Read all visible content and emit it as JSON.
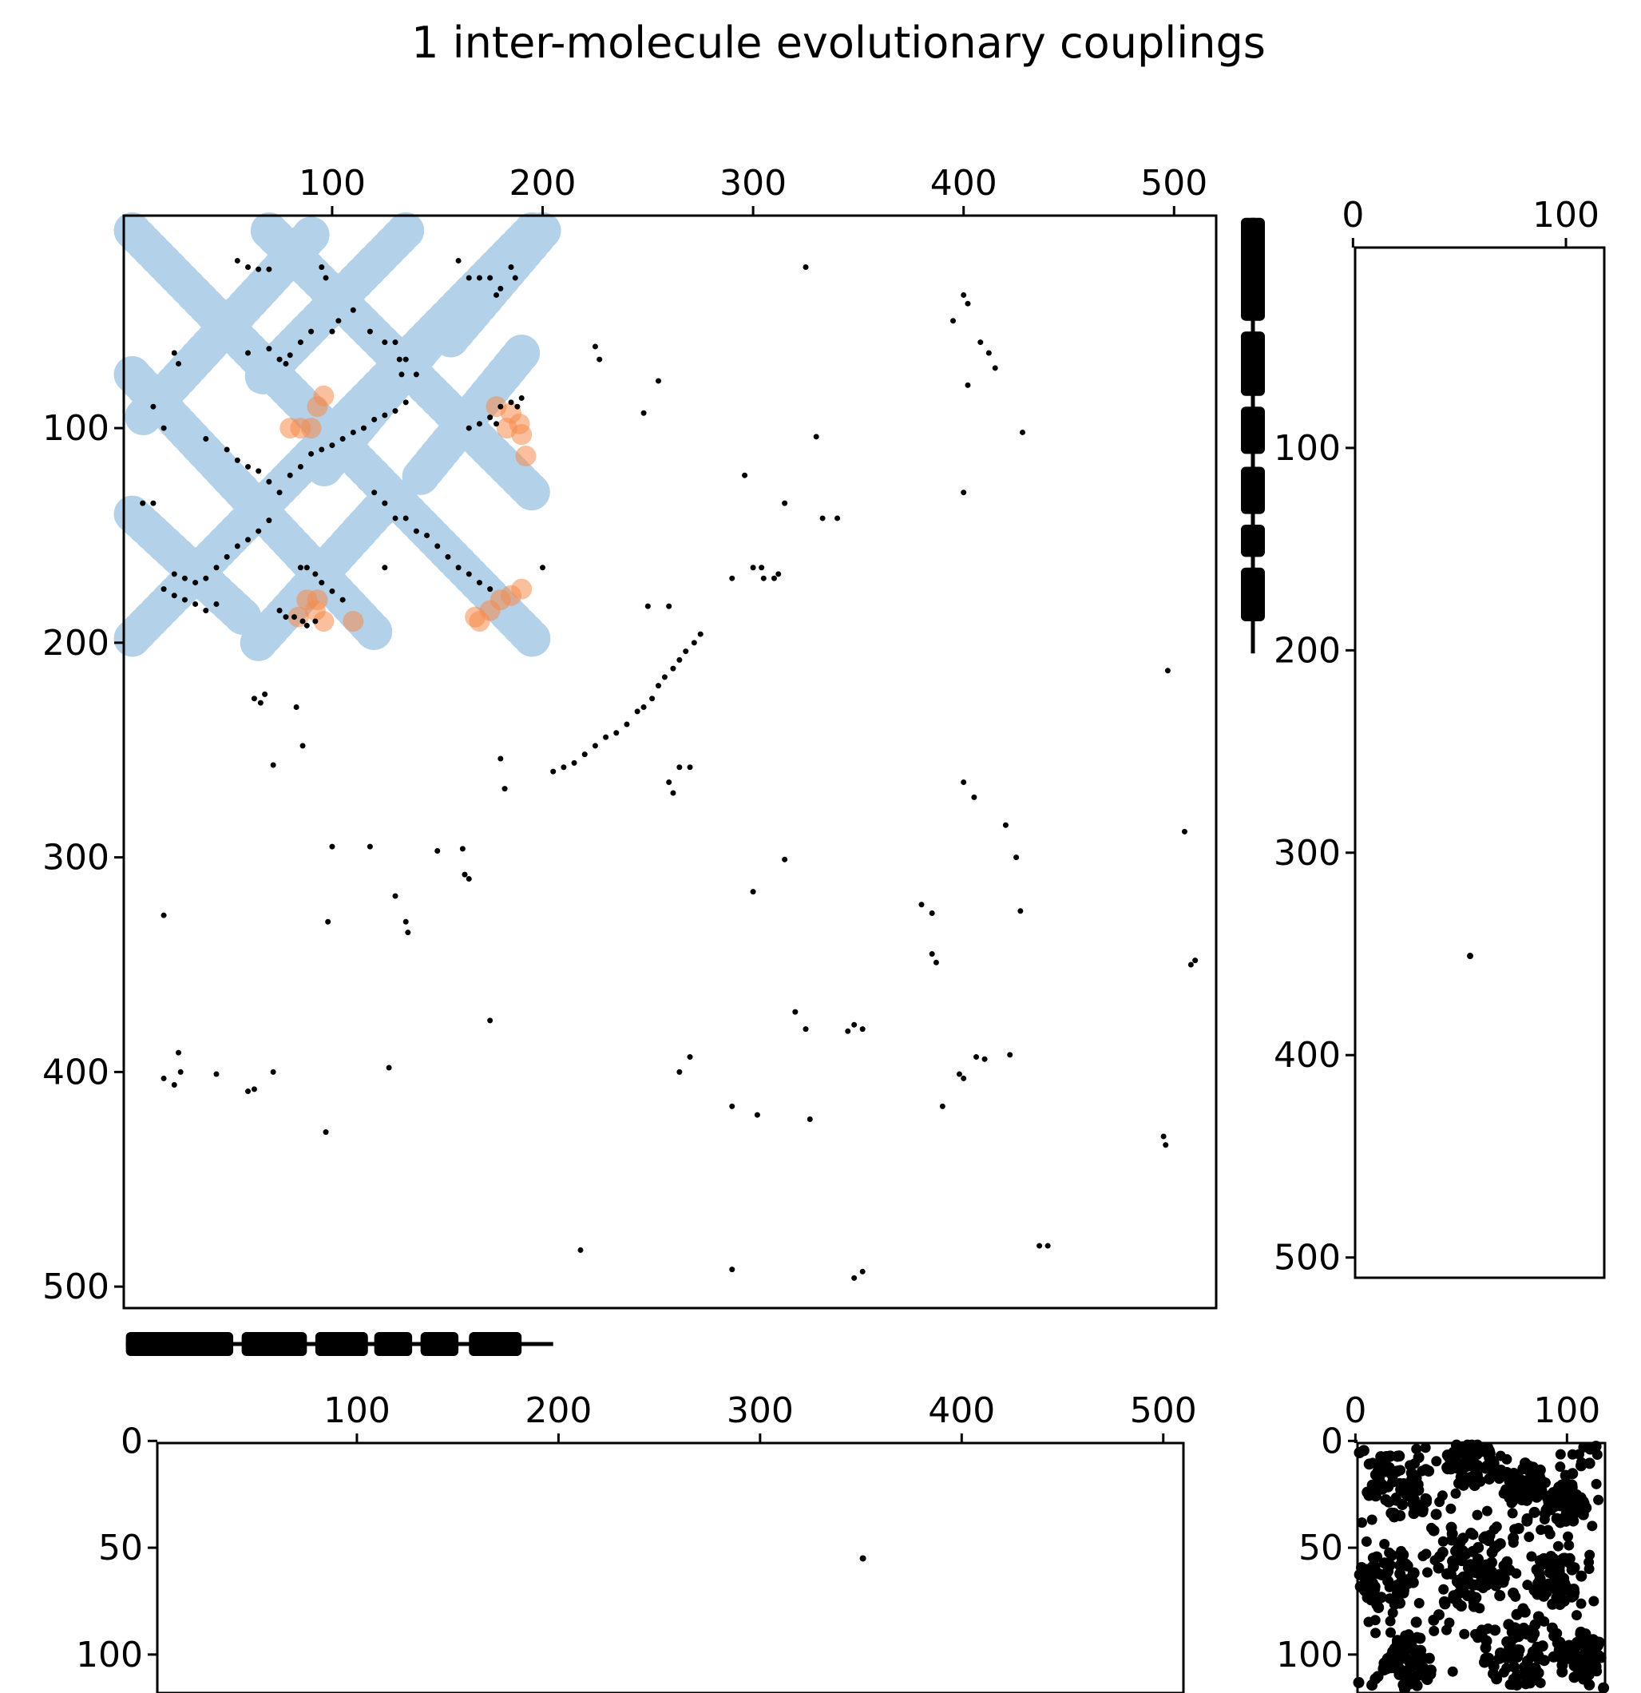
{
  "title": "1 inter-molecule evolutionary couplings",
  "colors": {
    "frame": "#000000",
    "ec_points": "#000000",
    "monomer_contacts": "#b3d1e8",
    "complex_contacts": "#f58a4a",
    "background": "#ffffff"
  },
  "chart_data": [
    {
      "id": "main",
      "type": "scatter",
      "title": "1 inter-molecule evolutionary couplings",
      "xlim": [
        1,
        520
      ],
      "ylim": [
        1,
        510
      ],
      "x_axis_position": "top",
      "y_inverted": true,
      "grid": false,
      "xticks": [
        100,
        200,
        300,
        400,
        500
      ],
      "yticks": [
        100,
        200,
        300,
        400,
        500
      ],
      "series": [],
      "monomer_contact_bands": [
        {
          "x1": 5,
          "y1": 8,
          "x2": 195,
          "y2": 198
        },
        {
          "x1": 5,
          "y1": 198,
          "x2": 195,
          "y2": 8
        },
        {
          "x1": 70,
          "y1": 8,
          "x2": 195,
          "y2": 130
        },
        {
          "x1": 5,
          "y1": 75,
          "x2": 120,
          "y2": 195
        },
        {
          "x1": 90,
          "y1": 10,
          "x2": 10,
          "y2": 95
        },
        {
          "x1": 135,
          "y1": 8,
          "x2": 65,
          "y2": 78
        },
        {
          "x1": 200,
          "y1": 8,
          "x2": 155,
          "y2": 60
        },
        {
          "x1": 190,
          "y1": 65,
          "x2": 140,
          "y2": 125
        },
        {
          "x1": 65,
          "y1": 200,
          "x2": 125,
          "y2": 135
        },
        {
          "x1": 5,
          "y1": 140,
          "x2": 60,
          "y2": 190
        },
        {
          "x1": 150,
          "y1": 55,
          "x2": 95,
          "y2": 120
        }
      ],
      "complex_contacts": [
        [
          96,
          85
        ],
        [
          93,
          90
        ],
        [
          85,
          100
        ],
        [
          90,
          100
        ],
        [
          80,
          100
        ],
        [
          185,
          93
        ],
        [
          189,
          98
        ],
        [
          183,
          100
        ],
        [
          178,
          90
        ],
        [
          190,
          103
        ],
        [
          192,
          113
        ],
        [
          88,
          180
        ],
        [
          92,
          185
        ],
        [
          96,
          190
        ],
        [
          84,
          188
        ],
        [
          93,
          180
        ],
        [
          110,
          190
        ],
        [
          175,
          185
        ],
        [
          170,
          190
        ],
        [
          185,
          178
        ],
        [
          190,
          175
        ],
        [
          180,
          180
        ],
        [
          168,
          188
        ]
      ],
      "ec_points": [
        [
          55,
          22
        ],
        [
          60,
          25
        ],
        [
          65,
          26
        ],
        [
          70,
          26
        ],
        [
          25,
          65
        ],
        [
          27,
          70
        ],
        [
          95,
          25
        ],
        [
          97,
          30
        ],
        [
          90,
          55
        ],
        [
          100,
          55
        ],
        [
          103,
          50
        ],
        [
          110,
          45
        ],
        [
          118,
          55
        ],
        [
          125,
          60
        ],
        [
          130,
          60
        ],
        [
          132,
          68
        ],
        [
          135,
          68
        ],
        [
          133,
          75
        ],
        [
          140,
          75
        ],
        [
          160,
          22
        ],
        [
          165,
          30
        ],
        [
          170,
          30
        ],
        [
          175,
          30
        ],
        [
          178,
          38
        ],
        [
          180,
          35
        ],
        [
          185,
          25
        ],
        [
          187,
          30
        ],
        [
          60,
          65
        ],
        [
          70,
          63
        ],
        [
          75,
          68
        ],
        [
          78,
          70
        ],
        [
          80,
          66
        ],
        [
          85,
          60
        ],
        [
          15,
          90
        ],
        [
          20,
          100
        ],
        [
          40,
          105
        ],
        [
          50,
          110
        ],
        [
          55,
          115
        ],
        [
          60,
          118
        ],
        [
          65,
          120
        ],
        [
          70,
          125
        ],
        [
          75,
          130
        ],
        [
          80,
          122
        ],
        [
          85,
          118
        ],
        [
          90,
          112
        ],
        [
          95,
          110
        ],
        [
          100,
          108
        ],
        [
          105,
          105
        ],
        [
          110,
          102
        ],
        [
          115,
          100
        ],
        [
          120,
          96
        ],
        [
          125,
          94
        ],
        [
          130,
          92
        ],
        [
          135,
          88
        ],
        [
          175,
          95
        ],
        [
          180,
          90
        ],
        [
          185,
          88
        ],
        [
          188,
          90
        ],
        [
          190,
          86
        ],
        [
          178,
          98
        ],
        [
          170,
          98
        ],
        [
          165,
          100
        ],
        [
          10,
          135
        ],
        [
          15,
          135
        ],
        [
          120,
          130
        ],
        [
          125,
          135
        ],
        [
          130,
          142
        ],
        [
          135,
          142
        ],
        [
          140,
          148
        ],
        [
          145,
          150
        ],
        [
          150,
          155
        ],
        [
          155,
          160
        ],
        [
          160,
          165
        ],
        [
          165,
          168
        ],
        [
          170,
          172
        ],
        [
          175,
          175
        ],
        [
          200,
          165
        ],
        [
          125,
          165
        ],
        [
          25,
          168
        ],
        [
          30,
          170
        ],
        [
          35,
          172
        ],
        [
          40,
          170
        ],
        [
          45,
          165
        ],
        [
          50,
          160
        ],
        [
          55,
          155
        ],
        [
          60,
          152
        ],
        [
          65,
          148
        ],
        [
          70,
          143
        ],
        [
          20,
          175
        ],
        [
          25,
          178
        ],
        [
          30,
          180
        ],
        [
          35,
          182
        ],
        [
          40,
          185
        ],
        [
          45,
          182
        ],
        [
          85,
          165
        ],
        [
          88,
          165
        ],
        [
          92,
          168
        ],
        [
          95,
          172
        ],
        [
          100,
          176
        ],
        [
          105,
          180
        ],
        [
          75,
          185
        ],
        [
          78,
          188
        ],
        [
          82,
          188
        ],
        [
          86,
          190
        ],
        [
          88,
          192
        ],
        [
          92,
          190
        ],
        [
          63,
          226
        ],
        [
          68,
          224
        ],
        [
          66,
          228
        ],
        [
          86,
          248
        ],
        [
          72,
          257
        ],
        [
          83,
          230
        ],
        [
          100,
          295
        ],
        [
          180,
          254
        ],
        [
          182,
          268
        ],
        [
          205,
          260
        ],
        [
          210,
          258
        ],
        [
          215,
          256
        ],
        [
          220,
          252
        ],
        [
          225,
          248
        ],
        [
          230,
          244
        ],
        [
          235,
          242
        ],
        [
          240,
          238
        ],
        [
          245,
          232
        ],
        [
          248,
          230
        ],
        [
          252,
          226
        ],
        [
          255,
          220
        ],
        [
          258,
          216
        ],
        [
          262,
          212
        ],
        [
          265,
          208
        ],
        [
          268,
          204
        ],
        [
          272,
          200
        ],
        [
          275,
          196
        ],
        [
          250,
          183
        ],
        [
          260,
          183
        ],
        [
          290,
          170
        ],
        [
          300,
          165
        ],
        [
          304,
          165
        ],
        [
          305,
          170
        ],
        [
          310,
          170
        ],
        [
          312,
          168
        ],
        [
          260,
          265
        ],
        [
          262,
          270
        ],
        [
          265,
          258
        ],
        [
          270,
          258
        ],
        [
          225,
          62
        ],
        [
          227,
          68
        ],
        [
          255,
          78
        ],
        [
          248,
          93
        ],
        [
          296,
          122
        ],
        [
          315,
          135
        ],
        [
          330,
          104
        ],
        [
          333,
          142
        ],
        [
          340,
          142
        ],
        [
          325,
          25
        ],
        [
          395,
          50
        ],
        [
          400,
          38
        ],
        [
          402,
          42
        ],
        [
          408,
          60
        ],
        [
          412,
          65
        ],
        [
          415,
          72
        ],
        [
          402,
          80
        ],
        [
          400,
          130
        ],
        [
          428,
          102
        ],
        [
          118,
          295
        ],
        [
          150,
          297
        ],
        [
          162,
          296
        ],
        [
          163,
          308
        ],
        [
          165,
          310
        ],
        [
          20,
          327
        ],
        [
          98,
          330
        ],
        [
          130,
          318
        ],
        [
          135,
          330
        ],
        [
          136,
          335
        ],
        [
          315,
          301
        ],
        [
          300,
          316
        ],
        [
          380,
          322
        ],
        [
          385,
          326
        ],
        [
          400,
          265
        ],
        [
          405,
          272
        ],
        [
          420,
          285
        ],
        [
          425,
          300
        ],
        [
          427,
          325
        ],
        [
          505,
          288
        ],
        [
          510,
          348
        ],
        [
          508,
          350
        ],
        [
          385,
          345
        ],
        [
          387,
          349
        ],
        [
          27,
          391
        ],
        [
          45,
          401
        ],
        [
          60,
          409
        ],
        [
          63,
          408
        ],
        [
          72,
          400
        ],
        [
          20,
          403
        ],
        [
          25,
          406
        ],
        [
          28,
          400
        ],
        [
          97,
          428
        ],
        [
          127,
          398
        ],
        [
          175,
          376
        ],
        [
          270,
          393
        ],
        [
          265,
          400
        ],
        [
          290,
          416
        ],
        [
          302,
          420
        ],
        [
          320,
          372
        ],
        [
          325,
          380
        ],
        [
          327,
          422
        ],
        [
          345,
          381
        ],
        [
          348,
          378
        ],
        [
          352,
          380
        ],
        [
          390,
          416
        ],
        [
          398,
          401
        ],
        [
          400,
          403
        ],
        [
          406,
          393
        ],
        [
          410,
          394
        ],
        [
          422,
          392
        ],
        [
          495,
          430
        ],
        [
          496,
          434
        ],
        [
          497,
          213
        ],
        [
          218,
          483
        ],
        [
          290,
          492
        ],
        [
          348,
          496
        ],
        [
          352,
          493
        ],
        [
          436,
          481
        ],
        [
          440,
          481
        ]
      ]
    },
    {
      "id": "right-side",
      "type": "scatter",
      "xlim": [
        1,
        118
      ],
      "ylim": [
        1,
        510
      ],
      "x_axis_position": "top",
      "y_inverted": true,
      "grid": false,
      "xticks": [
        0,
        100
      ],
      "yticks": [
        100,
        200,
        300,
        400,
        500
      ],
      "points": [
        [
          55,
          351
        ]
      ]
    },
    {
      "id": "bottom-side",
      "type": "scatter",
      "xlim": [
        1,
        510
      ],
      "ylim": [
        1,
        118
      ],
      "x_axis_position": "top",
      "y_inverted": true,
      "grid": false,
      "xticks": [
        100,
        200,
        300,
        400,
        500
      ],
      "yticks": [
        0,
        50,
        100
      ],
      "points": [
        [
          351,
          55
        ]
      ]
    },
    {
      "id": "corner",
      "type": "scatter",
      "xlim": [
        1,
        118
      ],
      "ylim": [
        1,
        118
      ],
      "x_axis_position": "top",
      "y_inverted": true,
      "grid": false,
      "xticks": [
        0,
        100
      ],
      "yticks": [
        0,
        50,
        100
      ],
      "dense_clusters": [
        {
          "cx": 20,
          "cy": 20,
          "r": 16
        },
        {
          "cx": 55,
          "cy": 10,
          "r": 12
        },
        {
          "cx": 80,
          "cy": 20,
          "r": 10
        },
        {
          "cx": 15,
          "cy": 65,
          "r": 14
        },
        {
          "cx": 55,
          "cy": 60,
          "r": 18
        },
        {
          "cx": 95,
          "cy": 65,
          "r": 12
        },
        {
          "cx": 25,
          "cy": 105,
          "r": 12
        },
        {
          "cx": 75,
          "cy": 100,
          "r": 15
        },
        {
          "cx": 105,
          "cy": 100,
          "r": 12
        },
        {
          "cx": 100,
          "cy": 30,
          "r": 10
        }
      ],
      "diagonal_bands": [
        {
          "x1": 3,
          "y1": 3,
          "x2": 116,
          "y2": 116
        },
        {
          "x1": 3,
          "y1": 116,
          "x2": 116,
          "y2": 3
        }
      ]
    }
  ],
  "secondary_structure": {
    "top_segments": [
      [
        2,
        53
      ],
      [
        57,
        88
      ],
      [
        92,
        117
      ],
      [
        120,
        138
      ],
      [
        142,
        160
      ],
      [
        165,
        190
      ]
    ],
    "side_segments": [
      [
        2,
        50
      ],
      [
        55,
        85
      ],
      [
        90,
        112
      ],
      [
        118,
        140
      ],
      [
        145,
        160
      ],
      [
        165,
        190
      ]
    ],
    "line_span": [
      2,
      205
    ]
  }
}
